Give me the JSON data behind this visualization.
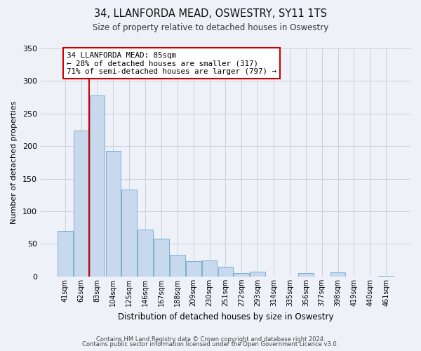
{
  "title1": "34, LLANFORDA MEAD, OSWESTRY, SY11 1TS",
  "title2": "Size of property relative to detached houses in Oswestry",
  "xlabel": "Distribution of detached houses by size in Oswestry",
  "ylabel": "Number of detached properties",
  "bar_labels": [
    "41sqm",
    "62sqm",
    "83sqm",
    "104sqm",
    "125sqm",
    "146sqm",
    "167sqm",
    "188sqm",
    "209sqm",
    "230sqm",
    "251sqm",
    "272sqm",
    "293sqm",
    "314sqm",
    "335sqm",
    "356sqm",
    "377sqm",
    "398sqm",
    "419sqm",
    "440sqm",
    "461sqm"
  ],
  "bar_values": [
    70,
    224,
    278,
    193,
    133,
    72,
    58,
    33,
    24,
    25,
    15,
    5,
    7,
    0,
    0,
    5,
    0,
    6,
    0,
    0,
    1
  ],
  "bar_color": "#c8d9ee",
  "bar_edge_color": "#7aafd4",
  "property_line_index": 2,
  "property_line_color": "#cc0000",
  "annotation_line1": "34 LLANFORDA MEAD: 85sqm",
  "annotation_line2": "← 28% of detached houses are smaller (317)",
  "annotation_line3": "71% of semi-detached houses are larger (797) →",
  "annotation_box_color": "white",
  "annotation_box_edge": "#cc0000",
  "ylim": [
    0,
    350
  ],
  "yticks": [
    0,
    50,
    100,
    150,
    200,
    250,
    300,
    350
  ],
  "footnote1": "Contains HM Land Registry data © Crown copyright and database right 2024.",
  "footnote2": "Contains public sector information licensed under the Open Government Licence v3.0.",
  "bg_color": "#eef2f8",
  "plot_bg_color": "#eef2f8",
  "grid_color": "#c8d0e0"
}
